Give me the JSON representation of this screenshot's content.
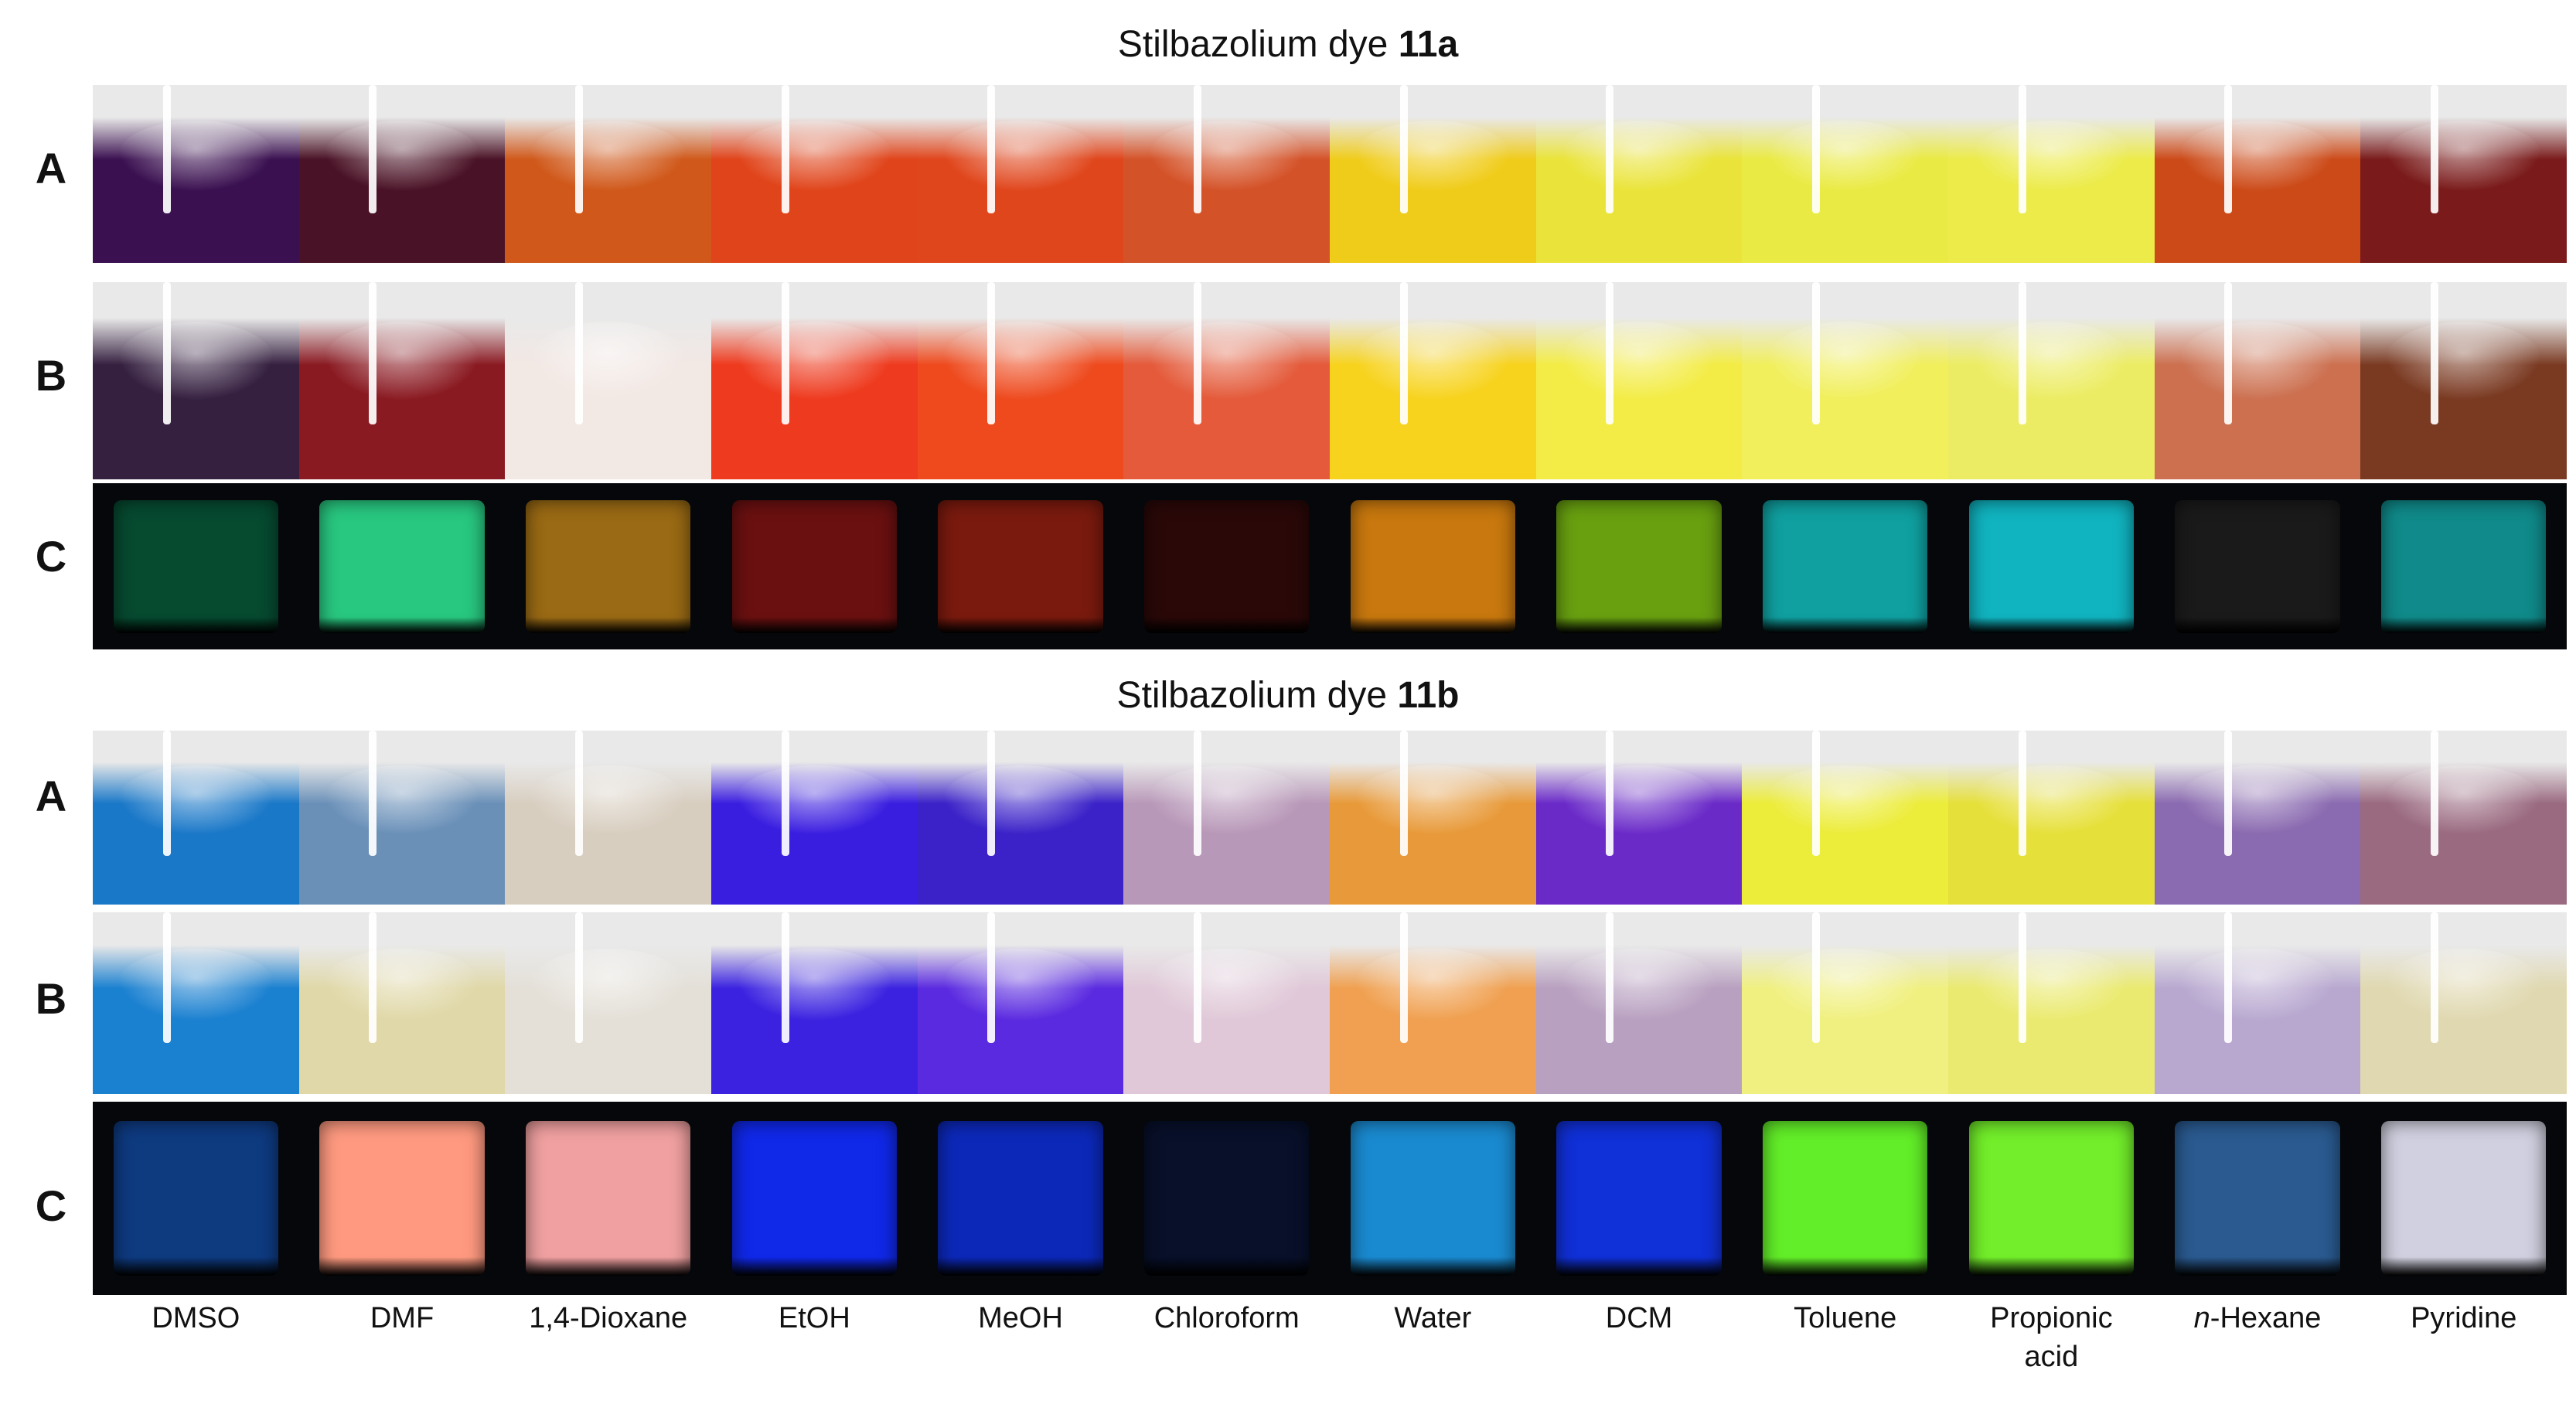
{
  "sections": [
    {
      "title_prefix": "Stilbazolium dye ",
      "title_bold": "11a",
      "rows": [
        {
          "label": "A",
          "colors": [
            "#3a1050",
            "#4a1226",
            "#d0581a",
            "#e0441a",
            "#e0461c",
            "#d45228",
            "#f0cc1a",
            "#eae43a",
            "#eaea44",
            "#eceb4a",
            "#cc4a18",
            "#7a1a1a"
          ]
        },
        {
          "label": "B",
          "colors": [
            "#352040",
            "#8a1a22",
            "#f2e8e4",
            "#ee3a1e",
            "#ee4a1e",
            "#e45a3a",
            "#f7d31e",
            "#f3ec46",
            "#f1ef5c",
            "#ecec64",
            "#cc7050",
            "#7a3a22"
          ]
        },
        {
          "label": "C",
          "colors": [
            "#064a30",
            "#28c880",
            "#9a6a14",
            "#6a1010",
            "#7a1a0e",
            "#2a0808",
            "#c8780e",
            "#68a010",
            "#10a0a0",
            "#10b4c0",
            "#1a1a1a",
            "#108a8a"
          ]
        }
      ]
    },
    {
      "title_prefix": "Stilbazolium dye ",
      "title_bold": "11b",
      "rows": [
        {
          "label": "A",
          "colors": [
            "#1a78c8",
            "#6a90b8",
            "#d8cec0",
            "#3a1ee0",
            "#3a22c8",
            "#b898b8",
            "#e89a3a",
            "#6a2ac8",
            "#ecec3a",
            "#e6e03a",
            "#8a6ab0",
            "#9a6a80"
          ]
        },
        {
          "label": "B",
          "colors": [
            "#1a80d0",
            "#e0d8a8",
            "#e4e0d8",
            "#3a22e0",
            "#5a2ae0",
            "#e0c8d8",
            "#f0a050",
            "#b8a0c0",
            "#f0f080",
            "#eaea70",
            "#b8a8d0",
            "#e0d8b0"
          ]
        },
        {
          "label": "C",
          "colors": [
            "#0e3a80",
            "#ff9a80",
            "#f0a0a0",
            "#1028e8",
            "#0c28b8",
            "#08102a",
            "#1a8ad0",
            "#1030d8",
            "#62ee28",
            "#72ee2a",
            "#2a5a90",
            "#d0d0e0"
          ]
        }
      ]
    }
  ],
  "solvents": [
    "DMSO",
    "DMF",
    "1,4-Dioxane",
    "EtOH",
    "MeOH",
    "Chloroform",
    "Water",
    "DCM",
    "Toluene",
    "Propionic acid",
    "n-Hexane",
    "Pyridine"
  ]
}
